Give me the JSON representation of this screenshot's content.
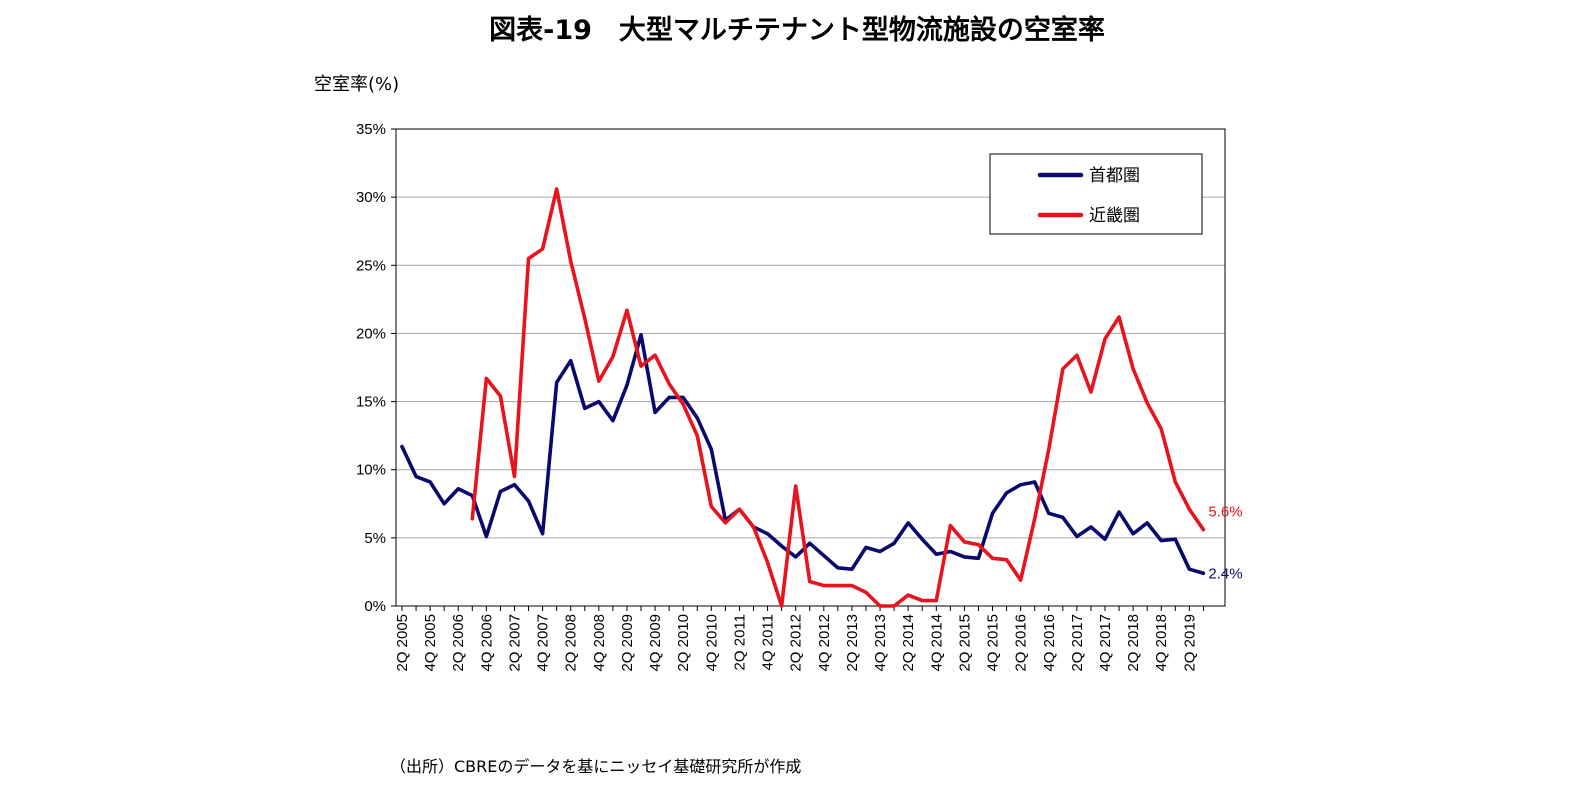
{
  "chart_data": {
    "type": "line",
    "title": "図表-19　大型マルチテナント型物流施設の空室率",
    "ylabel": "空室率(%)",
    "xlabel": "",
    "ylim": [
      0,
      35
    ],
    "yticks": [
      "0%",
      "5%",
      "10%",
      "15%",
      "20%",
      "25%",
      "30%",
      "35%"
    ],
    "ytick_values": [
      0,
      5,
      10,
      15,
      20,
      25,
      30,
      35
    ],
    "grid": true,
    "legend_position": "top-right",
    "categories": [
      "2Q 2005",
      "3Q 2005",
      "4Q 2005",
      "1Q 2006",
      "2Q 2006",
      "3Q 2006",
      "4Q 2006",
      "1Q 2007",
      "2Q 2007",
      "3Q 2007",
      "4Q 2007",
      "1Q 2008",
      "2Q 2008",
      "3Q 2008",
      "4Q 2008",
      "1Q 2009",
      "2Q 2009",
      "3Q 2009",
      "4Q 2009",
      "1Q 2010",
      "2Q 2010",
      "3Q 2010",
      "4Q 2010",
      "1Q 2011",
      "2Q 2011",
      "3Q 2011",
      "4Q 2011",
      "1Q 2012",
      "2Q 2012",
      "3Q 2012",
      "4Q 2012",
      "1Q 2013",
      "2Q 2013",
      "3Q 2013",
      "4Q 2013",
      "1Q 2014",
      "2Q 2014",
      "3Q 2014",
      "4Q 2014",
      "1Q 2015",
      "2Q 2015",
      "3Q 2015",
      "4Q 2015",
      "1Q 2016",
      "2Q 2016",
      "3Q 2016",
      "4Q 2016",
      "1Q 2017",
      "2Q 2017",
      "3Q 2017",
      "4Q 2017",
      "1Q 2018",
      "2Q 2018",
      "3Q 2018",
      "4Q 2018",
      "1Q 2019",
      "2Q 2019",
      "3Q 2019"
    ],
    "tick_labels": [
      "2Q 2005",
      "4Q 2005",
      "2Q 2006",
      "4Q 2006",
      "2Q 2007",
      "4Q 2007",
      "2Q 2008",
      "4Q 2008",
      "2Q 2009",
      "4Q 2009",
      "2Q 2010",
      "4Q 2010",
      "2Q 2011",
      "4Q 2011",
      "2Q 2012",
      "4Q 2012",
      "2Q 2013",
      "4Q 2013",
      "2Q 2014",
      "4Q 2014",
      "2Q 2015",
      "4Q 2015",
      "2Q 2016",
      "4Q 2016",
      "2Q 2017",
      "4Q 2017",
      "2Q 2018",
      "4Q 2018",
      "2Q 2019"
    ],
    "series": [
      {
        "name": "首都圏",
        "color": "#0a0a6e",
        "values": [
          11.7,
          9.5,
          9.1,
          7.5,
          8.6,
          8.1,
          5.1,
          8.4,
          8.9,
          7.7,
          5.3,
          16.4,
          18.0,
          14.5,
          15.0,
          13.6,
          16.2,
          19.9,
          14.2,
          15.3,
          15.3,
          13.8,
          11.5,
          6.3,
          7.1,
          5.8,
          5.3,
          4.4,
          3.6,
          4.6,
          3.7,
          2.8,
          2.7,
          4.3,
          4.0,
          4.6,
          6.1,
          4.9,
          3.8,
          4.0,
          3.6,
          3.5,
          6.8,
          8.3,
          8.9,
          9.1,
          6.8,
          6.5,
          5.1,
          5.8,
          4.9,
          6.9,
          5.3,
          6.1,
          4.8,
          4.9,
          2.7,
          2.4
        ],
        "end_label": "2.4%"
      },
      {
        "name": "近畿圏",
        "color": "#e8131d",
        "values": [
          null,
          null,
          null,
          null,
          null,
          6.4,
          16.7,
          15.4,
          9.5,
          25.5,
          26.2,
          30.6,
          25.3,
          21.1,
          16.5,
          18.3,
          21.7,
          17.6,
          18.4,
          16.3,
          14.8,
          12.5,
          7.3,
          6.1,
          7.1,
          5.8,
          3.2,
          0.0,
          8.8,
          1.8,
          1.5,
          1.5,
          1.5,
          1.0,
          0.0,
          0.0,
          0.8,
          0.4,
          0.4,
          5.9,
          4.7,
          4.5,
          3.5,
          3.4,
          1.9,
          6.4,
          11.5,
          17.4,
          18.4,
          15.7,
          19.6,
          21.2,
          17.4,
          14.9,
          13.0,
          9.1,
          7.1,
          5.6
        ],
        "end_label": "5.6%"
      }
    ]
  },
  "source_note": "（出所）CBREのデータを基にニッセイ基礎研究所が作成"
}
